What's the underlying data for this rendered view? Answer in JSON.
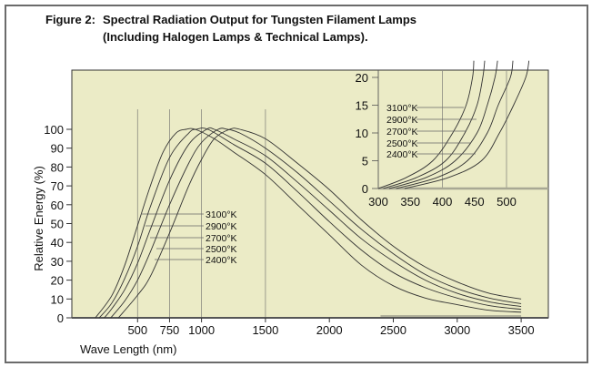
{
  "chart_data": [
    {
      "type": "line",
      "title_prefix": "Figure 2:",
      "title": "Spectral Radiation Output for Tungsten Filament Lamps",
      "subtitle": "(Including Halogen Lamps & Technical Lamps).",
      "xlabel": "Wave Length (nm)",
      "ylabel": "Relative Energy (%)",
      "xlim": [
        0,
        3700
      ],
      "ylim": [
        0,
        100
      ],
      "xticks": [
        500,
        750,
        1000,
        1500,
        2000,
        2500,
        3000,
        3500
      ],
      "yticks": [
        0,
        10,
        20,
        30,
        40,
        50,
        60,
        70,
        80,
        90,
        100
      ],
      "grid_x": [
        500,
        750,
        1000,
        1500
      ],
      "background": "#ebebc6",
      "line_color": "#333333",
      "series": [
        {
          "name": "3100°K",
          "points": [
            [
              170,
              0
            ],
            [
              300,
              12
            ],
            [
              400,
              28
            ],
            [
              500,
              49
            ],
            [
              600,
              70
            ],
            [
              700,
              88
            ],
            [
              800,
              98
            ],
            [
              880,
              100
            ],
            [
              950,
              100
            ],
            [
              1100,
              95
            ],
            [
              1250,
              88
            ],
            [
              1500,
              76
            ],
            [
              1750,
              60
            ],
            [
              2000,
              44
            ],
            [
              2250,
              28
            ],
            [
              2500,
              17
            ],
            [
              2750,
              10.5
            ],
            [
              3000,
              7
            ],
            [
              3250,
              4
            ],
            [
              3500,
              3
            ]
          ]
        },
        {
          "name": "2900°K",
          "points": [
            [
              200,
              0
            ],
            [
              300,
              8
            ],
            [
              400,
              21
            ],
            [
              500,
              38
            ],
            [
              600,
              59
            ],
            [
              750,
              85
            ],
            [
              900,
              98
            ],
            [
              960,
              100
            ],
            [
              1050,
              100
            ],
            [
              1250,
              92
            ],
            [
              1500,
              82
            ],
            [
              1750,
              67
            ],
            [
              2000,
              51
            ],
            [
              2250,
              36
            ],
            [
              2500,
              24
            ],
            [
              2750,
              16
            ],
            [
              3000,
              10.5
            ],
            [
              3250,
              6.5
            ],
            [
              3500,
              4.5
            ]
          ]
        },
        {
          "name": "2700°K",
          "points": [
            [
              240,
              0
            ],
            [
              300,
              5
            ],
            [
              400,
              15
            ],
            [
              500,
              29
            ],
            [
              600,
              47
            ],
            [
              750,
              73
            ],
            [
              900,
              92
            ],
            [
              1040,
              100
            ],
            [
              1100,
              100
            ],
            [
              1250,
              95
            ],
            [
              1500,
              86
            ],
            [
              1750,
              72
            ],
            [
              2000,
              57
            ],
            [
              2250,
              42
            ],
            [
              2500,
              30
            ],
            [
              2750,
              20
            ],
            [
              3000,
              13
            ],
            [
              3250,
              8.5
            ],
            [
              3500,
              6
            ]
          ]
        },
        {
          "name": "2500°K",
          "points": [
            [
              290,
              0
            ],
            [
              400,
              9
            ],
            [
              500,
              20
            ],
            [
              600,
              35
            ],
            [
              750,
              60
            ],
            [
              900,
              82
            ],
            [
              1000,
              93
            ],
            [
              1130,
              100
            ],
            [
              1200,
              100
            ],
            [
              1300,
              98
            ],
            [
              1500,
              90
            ],
            [
              1750,
              77
            ],
            [
              2000,
              62
            ],
            [
              2250,
              47
            ],
            [
              2500,
              34
            ],
            [
              2750,
              23
            ],
            [
              3000,
              15.5
            ],
            [
              3250,
              10.5
            ],
            [
              3500,
              7.5
            ]
          ]
        },
        {
          "name": "2400°K",
          "points": [
            [
              350,
              0
            ],
            [
              500,
              12
            ],
            [
              600,
              22
            ],
            [
              750,
              45
            ],
            [
              900,
              70
            ],
            [
              1000,
              84
            ],
            [
              1100,
              95
            ],
            [
              1220,
              100
            ],
            [
              1300,
              100
            ],
            [
              1500,
              95
            ],
            [
              1750,
              82
            ],
            [
              2000,
              68
            ],
            [
              2250,
              52
            ],
            [
              2500,
              38
            ],
            [
              2750,
              27
            ],
            [
              3000,
              19
            ],
            [
              3250,
              13
            ],
            [
              3500,
              10
            ]
          ]
        }
      ]
    },
    {
      "type": "line",
      "xlim": [
        300,
        560
      ],
      "ylim": [
        0,
        23
      ],
      "xticks": [
        300,
        350,
        400,
        450,
        500
      ],
      "yticks": [
        0,
        5,
        10,
        15,
        20
      ],
      "grid_x": [
        400,
        500
      ],
      "series": [
        {
          "name": "3100°K",
          "points": [
            [
              300,
              0
            ],
            [
              344,
              2
            ],
            [
              385,
              5
            ],
            [
              416,
              10
            ],
            [
              437,
              15
            ],
            [
              447,
              20
            ],
            [
              449,
              23
            ]
          ]
        },
        {
          "name": "2900°K",
          "points": [
            [
              308,
              0
            ],
            [
              360,
              2
            ],
            [
              405,
              5
            ],
            [
              435,
              10
            ],
            [
              454,
              15
            ],
            [
              463,
              20
            ],
            [
              466,
              23
            ]
          ]
        },
        {
          "name": "2700°K",
          "points": [
            [
              317,
              0
            ],
            [
              375,
              2
            ],
            [
              420,
              5
            ],
            [
              454,
              10
            ],
            [
              470,
              15
            ],
            [
              482,
              20
            ],
            [
              486,
              23
            ]
          ]
        },
        {
          "name": "2500°K",
          "points": [
            [
              328,
              0
            ],
            [
              392,
              2
            ],
            [
              439,
              5
            ],
            [
              470,
              10
            ],
            [
              487,
              15
            ],
            [
              506,
              20
            ],
            [
              510,
              23
            ]
          ]
        },
        {
          "name": "2400°K",
          "points": [
            [
              341,
              0
            ],
            [
              410,
              2
            ],
            [
              461,
              5
            ],
            [
              489,
              10
            ],
            [
              511,
              15
            ],
            [
              530,
              20
            ],
            [
              535,
              23
            ]
          ]
        }
      ]
    }
  ]
}
